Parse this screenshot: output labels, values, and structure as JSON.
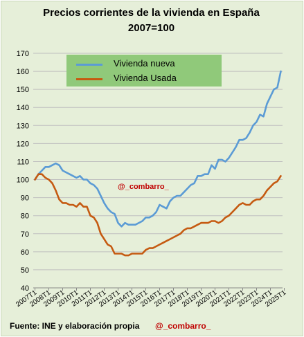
{
  "chart_data": {
    "type": "line",
    "title": "Precios corrientes de la vivienda en España",
    "subtitle": "2007=100",
    "ylim": [
      40,
      170
    ],
    "y_ticks": [
      40,
      50,
      60,
      70,
      80,
      90,
      100,
      110,
      120,
      130,
      140,
      150,
      160,
      170
    ],
    "x_tick_labels": [
      "2007T1",
      "2008T1",
      "2009T1",
      "2010T1",
      "2011T1",
      "2012T1",
      "2013T1",
      "2014T1",
      "2015T1",
      "2016T1",
      "2017T1",
      "2018T1",
      "2019T1",
      "2020T1",
      "2021T1",
      "2022T1",
      "2023T1",
      "2024T1",
      "2025T1"
    ],
    "grid": true,
    "legend_position": "top-center",
    "series": [
      {
        "name": "Vivienda nueva",
        "color": "#5b9bd5",
        "values": [
          100,
          103,
          105,
          107,
          107,
          108,
          109,
          108,
          105,
          104,
          103,
          102,
          101,
          102,
          100,
          100,
          98,
          97,
          95,
          91,
          87,
          84,
          82,
          81,
          76,
          74,
          76,
          75,
          75,
          75,
          76,
          77,
          79,
          79,
          80,
          82,
          86,
          85,
          84,
          88,
          90,
          91,
          91,
          93,
          95,
          97,
          98,
          102,
          102,
          103,
          103,
          108,
          106,
          111,
          111,
          110,
          112,
          115,
          118,
          122,
          122,
          123,
          126,
          130,
          132,
          136,
          135,
          142,
          146,
          150,
          151,
          160
        ]
      },
      {
        "name": "Vivienda Usada",
        "color": "#c55a11",
        "values": [
          100,
          103,
          103,
          101,
          100,
          98,
          94,
          89,
          87,
          87,
          86,
          86,
          85,
          87,
          85,
          85,
          80,
          79,
          76,
          70,
          67,
          64,
          63,
          59,
          59,
          59,
          58,
          58,
          59,
          59,
          59,
          59,
          61,
          62,
          62,
          63,
          64,
          65,
          66,
          67,
          68,
          69,
          70,
          72,
          73,
          73,
          74,
          75,
          76,
          76,
          76,
          77,
          77,
          76,
          77,
          79,
          80,
          82,
          84,
          86,
          87,
          86,
          86,
          88,
          89,
          89,
          91,
          94,
          96,
          98,
          99,
          102
        ]
      }
    ]
  },
  "annotations": {
    "watermark": "@_combarro_",
    "source": "Fuente: INE y elaboración propia",
    "handle": "@_combarro_"
  }
}
